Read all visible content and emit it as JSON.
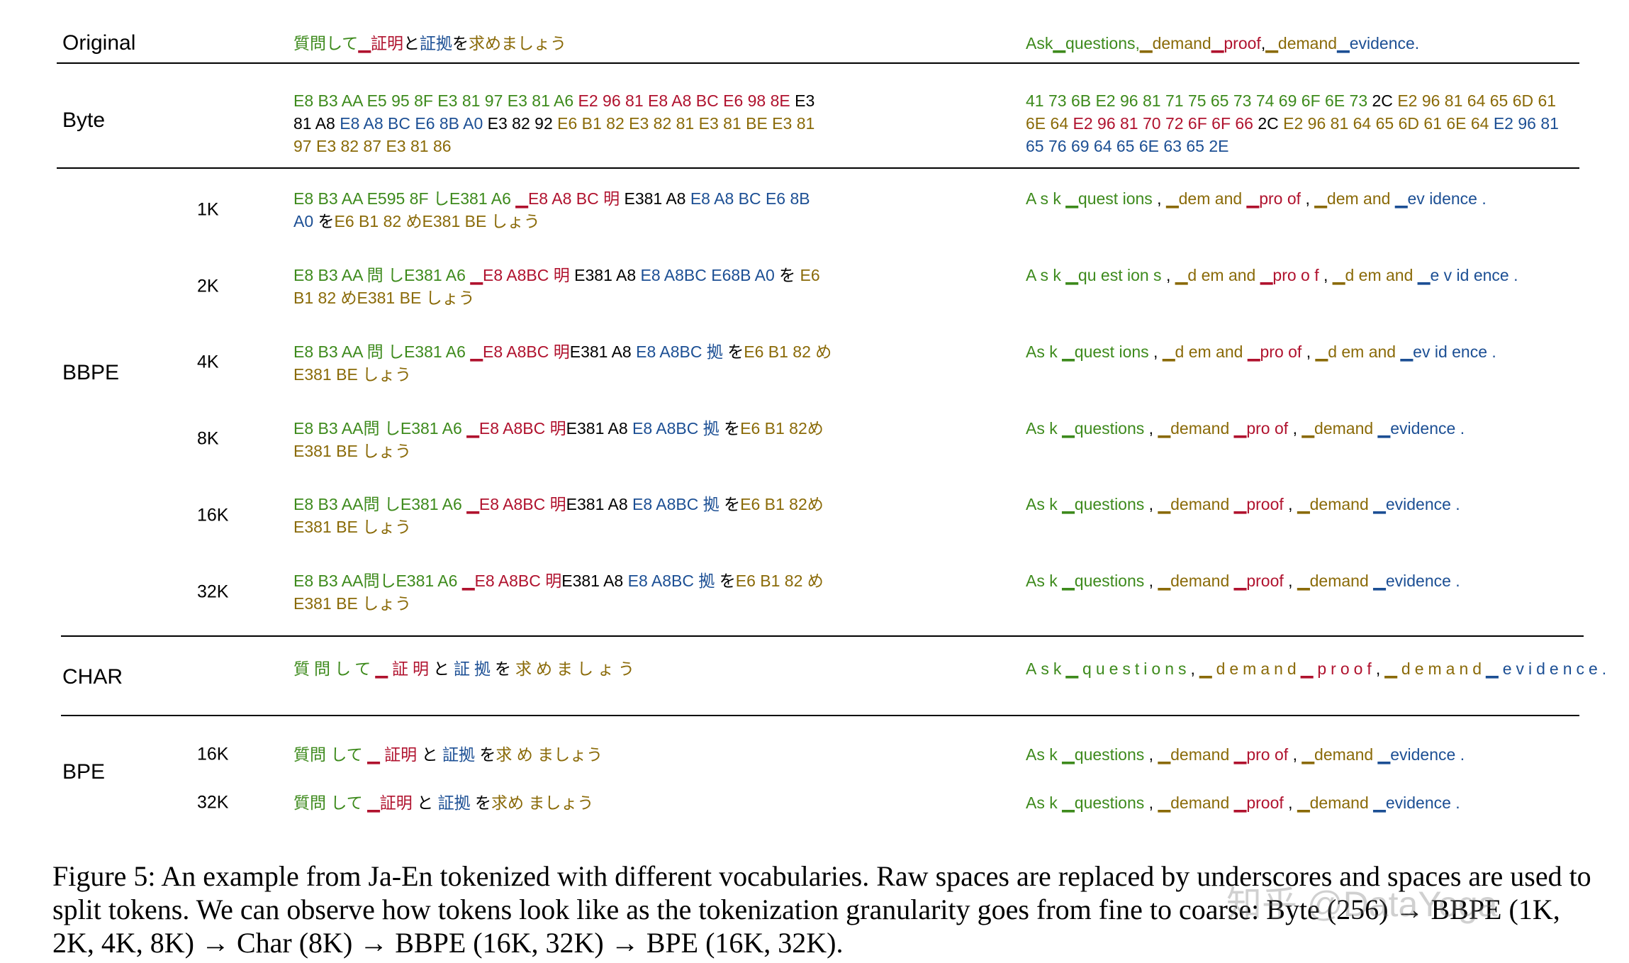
{
  "sections": [
    {
      "label": "Original",
      "rows": [
        {
          "ja": [
            [
              "質問して",
              "#3d8a1c"
            ],
            [
              "▁証明",
              "#b0122e"
            ],
            [
              "と",
              "#000000"
            ],
            [
              "証拠",
              "#1c4f94"
            ],
            [
              "を",
              "#000000"
            ],
            [
              "求めましょう",
              "#8a6a08"
            ]
          ],
          "en": [
            [
              "Ask▁questions,",
              "#3d8a1c"
            ],
            [
              "▁demand",
              "#8a6a08"
            ],
            [
              "▁proof",
              "#b0122e"
            ],
            [
              ",",
              "#000000"
            ],
            [
              "▁demand",
              "#8a6a08"
            ],
            [
              "▁evidence.",
              "#1c4f94"
            ]
          ]
        }
      ]
    },
    {
      "label": "Byte",
      "rows": [
        {
          "ja": [
            [
              "E8 B3 AA E5 95 8F E3 81 97 E3 81 A6 ",
              "#3d8a1c"
            ],
            [
              "E2 96 81 E8 A8 BC E6 98 8E ",
              "#b0122e"
            ],
            [
              "E3 81 A8 ",
              "#000000"
            ],
            [
              "E8 A8 BC E6 8B A0 ",
              "#1c4f94"
            ],
            [
              "E3 82 92 ",
              "#000000"
            ],
            [
              "E6 B1 82 E3 82 81 E3 81 BE E3 81 97 E3 82 87 E3 81 86",
              "#8a6a08"
            ]
          ],
          "en": [
            [
              "41 73 6B E2 96 81 71 75 65 73 74 69 6F 6E 73 ",
              "#3d8a1c"
            ],
            [
              "2C ",
              "#000000"
            ],
            [
              "E2 96 81 64 65 6D 61 6E 64 ",
              "#8a6a08"
            ],
            [
              "E2 96 81 70 72 6F 6F 66 ",
              "#b0122e"
            ],
            [
              "2C ",
              "#000000"
            ],
            [
              "E2 96 81 64 65 6D 61 6E 64 ",
              "#8a6a08"
            ],
            [
              "E2 96 81 65 76 69 64 65 6E 63 65 2E",
              "#1c4f94"
            ]
          ]
        }
      ]
    },
    {
      "label": "BBPE",
      "rows": [
        {
          "vocab": "1K",
          "ja": [
            [
              "E8 B3 AA E595 8F しE381 A6 ",
              "#3d8a1c"
            ],
            [
              "▁E8 A8 BC 明 ",
              "#b0122e"
            ],
            [
              "E381 A8 ",
              "#000000"
            ],
            [
              "E8 A8 BC E6 8B A0 ",
              "#1c4f94"
            ],
            [
              "を",
              "#000000"
            ],
            [
              "E6 B1 82 めE381 BE しょう",
              "#8a6a08"
            ]
          ],
          "en": [
            [
              "A s k ▁quest ions ",
              "#3d8a1c"
            ],
            [
              ", ",
              "#000000"
            ],
            [
              "▁dem and ",
              "#8a6a08"
            ],
            [
              "▁pro of ",
              "#b0122e"
            ],
            [
              ", ",
              "#000000"
            ],
            [
              "▁dem and ",
              "#8a6a08"
            ],
            [
              "▁ev idence .",
              "#1c4f94"
            ]
          ]
        },
        {
          "vocab": "2K",
          "ja": [
            [
              "E8 B3 AA 問 しE381 A6 ",
              "#3d8a1c"
            ],
            [
              "▁E8 A8BC 明 ",
              "#b0122e"
            ],
            [
              "E381 A8 ",
              "#000000"
            ],
            [
              "E8 A8BC E68B A0 ",
              "#1c4f94"
            ],
            [
              "を ",
              "#000000"
            ],
            [
              "E6 B1 82 めE381 BE しょう",
              "#8a6a08"
            ]
          ],
          "en": [
            [
              "A s k ▁qu est ion s ",
              "#3d8a1c"
            ],
            [
              ", ",
              "#000000"
            ],
            [
              "▁d em and ",
              "#8a6a08"
            ],
            [
              "▁pro o f ",
              "#b0122e"
            ],
            [
              ", ",
              "#000000"
            ],
            [
              "▁d em and ",
              "#8a6a08"
            ],
            [
              "▁e v id ence .",
              "#1c4f94"
            ]
          ]
        },
        {
          "vocab": "4K",
          "ja": [
            [
              "E8 B3 AA 問 しE381 A6 ",
              "#3d8a1c"
            ],
            [
              "▁E8 A8BC 明",
              "#b0122e"
            ],
            [
              "E381 A8 ",
              "#000000"
            ],
            [
              "E8 A8BC 拠 ",
              "#1c4f94"
            ],
            [
              "を",
              "#000000"
            ],
            [
              "E6 B1 82 めE381 BE しょう",
              "#8a6a08"
            ]
          ],
          "en": [
            [
              "As k ▁quest ions ",
              "#3d8a1c"
            ],
            [
              ", ",
              "#000000"
            ],
            [
              "▁d em and ",
              "#8a6a08"
            ],
            [
              "▁pro of ",
              "#b0122e"
            ],
            [
              ", ",
              "#000000"
            ],
            [
              "▁d em and ",
              "#8a6a08"
            ],
            [
              "▁ev id ence .",
              "#1c4f94"
            ]
          ]
        },
        {
          "vocab": "8K",
          "ja": [
            [
              "E8 B3 AA問 しE381 A6 ",
              "#3d8a1c"
            ],
            [
              "▁E8 A8BC 明",
              "#b0122e"
            ],
            [
              "E381 A8 ",
              "#000000"
            ],
            [
              "E8 A8BC 拠 ",
              "#1c4f94"
            ],
            [
              "を",
              "#000000"
            ],
            [
              "E6 B1 82めE381 BE しょう",
              "#8a6a08"
            ]
          ],
          "en": [
            [
              "As k ▁questions ",
              "#3d8a1c"
            ],
            [
              ", ",
              "#000000"
            ],
            [
              "▁demand ",
              "#8a6a08"
            ],
            [
              "▁pro of ",
              "#b0122e"
            ],
            [
              ", ",
              "#000000"
            ],
            [
              "▁demand ",
              "#8a6a08"
            ],
            [
              "▁evidence .",
              "#1c4f94"
            ]
          ]
        },
        {
          "vocab": "16K",
          "ja": [
            [
              "E8 B3 AA問 しE381 A6 ",
              "#3d8a1c"
            ],
            [
              "▁E8 A8BC 明",
              "#b0122e"
            ],
            [
              "E381 A8 ",
              "#000000"
            ],
            [
              "E8 A8BC 拠 ",
              "#1c4f94"
            ],
            [
              "を",
              "#000000"
            ],
            [
              "E6 B1 82めE381 BE しょう",
              "#8a6a08"
            ]
          ],
          "en": [
            [
              "As k ▁questions ",
              "#3d8a1c"
            ],
            [
              ", ",
              "#000000"
            ],
            [
              "▁demand ",
              "#8a6a08"
            ],
            [
              "▁proof ",
              "#b0122e"
            ],
            [
              ", ",
              "#000000"
            ],
            [
              "▁demand ",
              "#8a6a08"
            ],
            [
              "▁evidence .",
              "#1c4f94"
            ]
          ]
        },
        {
          "vocab": "32K",
          "ja": [
            [
              "E8 B3 AA問しE381 A6 ",
              "#3d8a1c"
            ],
            [
              "▁E8 A8BC 明",
              "#b0122e"
            ],
            [
              "E381 A8 ",
              "#000000"
            ],
            [
              "E8 A8BC 拠 ",
              "#1c4f94"
            ],
            [
              "を",
              "#000000"
            ],
            [
              "E6 B1 82 めE381 BE しょう",
              "#8a6a08"
            ]
          ],
          "en": [
            [
              "As k ▁questions ",
              "#3d8a1c"
            ],
            [
              ", ",
              "#000000"
            ],
            [
              "▁demand ",
              "#8a6a08"
            ],
            [
              "▁proof ",
              "#b0122e"
            ],
            [
              ", ",
              "#000000"
            ],
            [
              "▁demand ",
              "#8a6a08"
            ],
            [
              "▁evidence .",
              "#1c4f94"
            ]
          ]
        }
      ]
    },
    {
      "label": "CHAR",
      "rows": [
        {
          "ja": [
            [
              "質問して",
              "#3d8a1c"
            ],
            [
              "▁証明",
              "#b0122e"
            ],
            [
              "と",
              "#000000"
            ],
            [
              "証拠",
              "#1c4f94"
            ],
            [
              "を",
              "#000000"
            ],
            [
              "求めましょう",
              "#8a6a08"
            ]
          ],
          "en": [
            [
              "Ask▁questions",
              "#3d8a1c"
            ],
            [
              ",",
              "#000000"
            ],
            [
              "▁demand",
              "#8a6a08"
            ],
            [
              "▁proof",
              "#b0122e"
            ],
            [
              ",",
              "#000000"
            ],
            [
              "▁demand",
              "#8a6a08"
            ],
            [
              "▁evidence.",
              "#1c4f94"
            ]
          ]
        }
      ]
    },
    {
      "label": "BPE",
      "rows": [
        {
          "vocab": "16K",
          "ja": [
            [
              "質問 して ",
              "#3d8a1c"
            ],
            [
              "▁ 証明 ",
              "#b0122e"
            ],
            [
              "と ",
              "#000000"
            ],
            [
              "証拠 ",
              "#1c4f94"
            ],
            [
              "を",
              "#000000"
            ],
            [
              "求 め ましょう",
              "#8a6a08"
            ]
          ],
          "en": [
            [
              "As k ▁questions ",
              "#3d8a1c"
            ],
            [
              ", ",
              "#000000"
            ],
            [
              "▁demand ",
              "#8a6a08"
            ],
            [
              "▁pro of ",
              "#b0122e"
            ],
            [
              ", ",
              "#000000"
            ],
            [
              "▁demand ",
              "#8a6a08"
            ],
            [
              "▁evidence .",
              "#1c4f94"
            ]
          ]
        },
        {
          "vocab": "32K",
          "ja": [
            [
              "質問 して ",
              "#3d8a1c"
            ],
            [
              "▁証明 ",
              "#b0122e"
            ],
            [
              "と ",
              "#000000"
            ],
            [
              "証拠 ",
              "#1c4f94"
            ],
            [
              "を",
              "#000000"
            ],
            [
              "求め ましょう",
              "#8a6a08"
            ]
          ],
          "en": [
            [
              "As k ▁questions ",
              "#3d8a1c"
            ],
            [
              ", ",
              "#000000"
            ],
            [
              "▁demand ",
              "#8a6a08"
            ],
            [
              "▁proof ",
              "#b0122e"
            ],
            [
              ", ",
              "#000000"
            ],
            [
              "▁demand ",
              "#8a6a08"
            ],
            [
              "▁evidence .",
              "#1c4f94"
            ]
          ]
        }
      ]
    }
  ],
  "caption": "Figure 5: An example from Ja-En tokenized with different vocabularies. Raw spaces are replaced by underscores and spaces are used to split tokens. We can observe how tokens look like as the tokenization granularity goes from fine to coarse: Byte (256) → BBPE (1K, 2K, 4K, 8K) → Char (8K) → BBPE (16K, 32K) → BPE (16K, 32K).",
  "watermark": "知乎 @DataYoga"
}
